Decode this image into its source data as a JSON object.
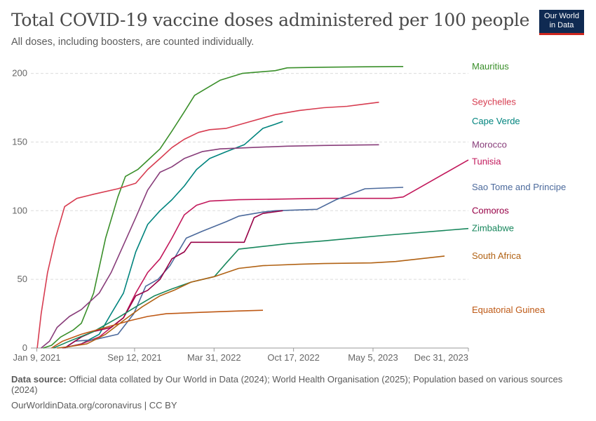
{
  "header": {
    "title": "Total COVID-19 vaccine doses administered per 100 people",
    "subtitle": "All doses, including boosters, are counted individually.",
    "logo_line1": "Our World",
    "logo_line2": "in Data"
  },
  "footer": {
    "source_label": "Data source:",
    "source_text": "Official data collated by Our World in Data (2024); World Health Organisation (2025); Population based on various sources (2024)",
    "url": "OurWorldinData.org/coronavirus | CC BY"
  },
  "chart_data": {
    "type": "line",
    "title": "Total COVID-19 vaccine doses administered per 100 people",
    "x_axis": {
      "type": "date",
      "range": [
        "2020-12-25",
        "2023-12-31"
      ],
      "ticks": [
        {
          "date": "2021-01-09",
          "label": "Jan 9, 2021"
        },
        {
          "date": "2021-09-12",
          "label": "Sep 12, 2021"
        },
        {
          "date": "2022-03-31",
          "label": "Mar 31, 2022"
        },
        {
          "date": "2022-10-17",
          "label": "Oct 17, 2022"
        },
        {
          "date": "2023-05-05",
          "label": "May 5, 2023"
        },
        {
          "date": "2023-12-31",
          "label": "Dec 31, 2023"
        }
      ]
    },
    "y_axis": {
      "range": [
        0,
        210
      ],
      "ticks": [
        0,
        50,
        100,
        150,
        200
      ]
    },
    "grid": "horizontal-dashed",
    "legend": "line-end-labels-right",
    "series": [
      {
        "name": "Mauritius",
        "color": "#3a8f2a",
        "points": [
          [
            "2021-01-25",
            0
          ],
          [
            "2021-02-15",
            2
          ],
          [
            "2021-03-10",
            8
          ],
          [
            "2021-04-10",
            13
          ],
          [
            "2021-05-01",
            18
          ],
          [
            "2021-06-01",
            40
          ],
          [
            "2021-07-01",
            80
          ],
          [
            "2021-08-01",
            110
          ],
          [
            "2021-08-20",
            125
          ],
          [
            "2021-09-20",
            130
          ],
          [
            "2021-10-20",
            138
          ],
          [
            "2021-11-15",
            145
          ],
          [
            "2021-12-15",
            158
          ],
          [
            "2022-01-15",
            172
          ],
          [
            "2022-02-10",
            184
          ],
          [
            "2022-04-15",
            195
          ],
          [
            "2022-06-10",
            200
          ],
          [
            "2022-09-01",
            202
          ],
          [
            "2022-10-01",
            204
          ],
          [
            "2023-01-01",
            204.5
          ],
          [
            "2023-07-01",
            205
          ],
          [
            "2023-07-20",
            205
          ]
        ]
      },
      {
        "name": "Seychelles",
        "color": "#d73c50",
        "points": [
          [
            "2021-01-10",
            0
          ],
          [
            "2021-01-20",
            25
          ],
          [
            "2021-02-05",
            55
          ],
          [
            "2021-02-25",
            80
          ],
          [
            "2021-03-20",
            103
          ],
          [
            "2021-04-20",
            109
          ],
          [
            "2021-06-01",
            112
          ],
          [
            "2021-08-01",
            116
          ],
          [
            "2021-09-15",
            120
          ],
          [
            "2021-10-15",
            130
          ],
          [
            "2021-11-15",
            138
          ],
          [
            "2021-12-15",
            146
          ],
          [
            "2022-01-15",
            152
          ],
          [
            "2022-02-20",
            157
          ],
          [
            "2022-03-20",
            159
          ],
          [
            "2022-05-01",
            160
          ],
          [
            "2022-07-01",
            165
          ],
          [
            "2022-09-01",
            170
          ],
          [
            "2022-11-01",
            173
          ],
          [
            "2023-01-01",
            175
          ],
          [
            "2023-03-01",
            176
          ],
          [
            "2023-05-20",
            179
          ]
        ]
      },
      {
        "name": "Cape Verde",
        "color": "#00847e",
        "points": [
          [
            "2021-03-15",
            0
          ],
          [
            "2021-05-01",
            3
          ],
          [
            "2021-06-15",
            10
          ],
          [
            "2021-07-15",
            25
          ],
          [
            "2021-08-15",
            40
          ],
          [
            "2021-09-15",
            70
          ],
          [
            "2021-10-15",
            90
          ],
          [
            "2021-11-15",
            100
          ],
          [
            "2021-12-15",
            108
          ],
          [
            "2022-01-15",
            118
          ],
          [
            "2022-02-15",
            130
          ],
          [
            "2022-03-20",
            138
          ],
          [
            "2022-05-01",
            143
          ],
          [
            "2022-06-15",
            148
          ],
          [
            "2022-08-01",
            160
          ],
          [
            "2022-09-01",
            163
          ],
          [
            "2022-09-20",
            165
          ]
        ]
      },
      {
        "name": "Morocco",
        "color": "#883d7a",
        "points": [
          [
            "2021-01-20",
            0
          ],
          [
            "2021-02-10",
            5
          ],
          [
            "2021-03-01",
            15
          ],
          [
            "2021-04-01",
            23
          ],
          [
            "2021-05-01",
            28
          ],
          [
            "2021-06-15",
            40
          ],
          [
            "2021-07-15",
            55
          ],
          [
            "2021-08-15",
            75
          ],
          [
            "2021-09-15",
            95
          ],
          [
            "2021-10-15",
            115
          ],
          [
            "2021-11-15",
            128
          ],
          [
            "2021-12-15",
            132
          ],
          [
            "2022-01-15",
            138
          ],
          [
            "2022-03-01",
            143
          ],
          [
            "2022-04-15",
            145
          ],
          [
            "2022-07-01",
            146
          ],
          [
            "2022-10-01",
            147
          ],
          [
            "2023-01-01",
            147.5
          ],
          [
            "2023-05-20",
            148
          ]
        ]
      },
      {
        "name": "Tunisia",
        "color": "#c2185b",
        "points": [
          [
            "2021-03-15",
            0
          ],
          [
            "2021-05-01",
            3
          ],
          [
            "2021-06-15",
            8
          ],
          [
            "2021-07-15",
            15
          ],
          [
            "2021-08-15",
            22
          ],
          [
            "2021-09-15",
            40
          ],
          [
            "2021-10-15",
            55
          ],
          [
            "2021-11-15",
            65
          ],
          [
            "2021-12-15",
            80
          ],
          [
            "2022-01-15",
            97
          ],
          [
            "2022-02-15",
            104
          ],
          [
            "2022-03-20",
            107
          ],
          [
            "2022-06-01",
            108
          ],
          [
            "2022-10-01",
            108.5
          ],
          [
            "2023-01-01",
            109
          ],
          [
            "2023-06-20",
            109
          ],
          [
            "2023-07-20",
            110
          ],
          [
            "2023-12-31",
            137
          ]
        ]
      },
      {
        "name": "Sao Tome and Principe",
        "color": "#4c6a9c",
        "points": [
          [
            "2021-03-20",
            0
          ],
          [
            "2021-04-15",
            5
          ],
          [
            "2021-06-01",
            6
          ],
          [
            "2021-08-01",
            10
          ],
          [
            "2021-09-10",
            25
          ],
          [
            "2021-10-10",
            45
          ],
          [
            "2021-11-10",
            50
          ],
          [
            "2021-12-10",
            60
          ],
          [
            "2022-01-20",
            80
          ],
          [
            "2022-03-01",
            85
          ],
          [
            "2022-05-01",
            92
          ],
          [
            "2022-06-01",
            96
          ],
          [
            "2022-08-01",
            99
          ],
          [
            "2022-09-01",
            100
          ],
          [
            "2022-12-15",
            101
          ],
          [
            "2023-02-01",
            108
          ],
          [
            "2023-04-15",
            116
          ],
          [
            "2023-07-20",
            117
          ]
        ]
      },
      {
        "name": "Comoros",
        "color": "#970046",
        "points": [
          [
            "2021-03-20",
            0
          ],
          [
            "2021-05-01",
            8
          ],
          [
            "2021-06-01",
            12
          ],
          [
            "2021-07-15",
            15
          ],
          [
            "2021-08-15",
            22
          ],
          [
            "2021-09-15",
            38
          ],
          [
            "2021-10-15",
            42
          ],
          [
            "2021-11-15",
            50
          ],
          [
            "2021-12-15",
            65
          ],
          [
            "2022-01-15",
            70
          ],
          [
            "2022-02-01",
            77
          ],
          [
            "2022-06-15",
            77
          ],
          [
            "2022-07-10",
            95
          ],
          [
            "2022-08-01",
            98
          ],
          [
            "2022-09-20",
            100
          ]
        ]
      },
      {
        "name": "Zimbabwe",
        "color": "#18875d",
        "points": [
          [
            "2021-02-20",
            0
          ],
          [
            "2021-04-01",
            5
          ],
          [
            "2021-06-01",
            12
          ],
          [
            "2021-08-01",
            22
          ],
          [
            "2021-09-15",
            30
          ],
          [
            "2021-11-01",
            38
          ],
          [
            "2021-12-15",
            43
          ],
          [
            "2022-02-01",
            48
          ],
          [
            "2022-04-01",
            52
          ],
          [
            "2022-05-01",
            62
          ],
          [
            "2022-06-01",
            72
          ],
          [
            "2022-08-01",
            74
          ],
          [
            "2022-10-01",
            76
          ],
          [
            "2023-01-01",
            78
          ],
          [
            "2023-06-01",
            82
          ],
          [
            "2023-12-31",
            87
          ]
        ]
      },
      {
        "name": "South Africa",
        "color": "#b16214",
        "points": [
          [
            "2021-03-01",
            0
          ],
          [
            "2021-04-01",
            1
          ],
          [
            "2021-05-15",
            3
          ],
          [
            "2021-07-01",
            10
          ],
          [
            "2021-08-15",
            20
          ],
          [
            "2021-10-01",
            30
          ],
          [
            "2021-11-15",
            38
          ],
          [
            "2021-12-20",
            42
          ],
          [
            "2022-02-01",
            48
          ],
          [
            "2022-04-01",
            52
          ],
          [
            "2022-06-01",
            58
          ],
          [
            "2022-08-01",
            60
          ],
          [
            "2022-11-01",
            61
          ],
          [
            "2023-01-01",
            61.5
          ],
          [
            "2023-05-01",
            62
          ],
          [
            "2023-07-01",
            63
          ],
          [
            "2023-11-01",
            67
          ]
        ]
      },
      {
        "name": "Equatorial Guinea",
        "color": "#be5915",
        "points": [
          [
            "2021-02-15",
            0
          ],
          [
            "2021-03-15",
            5
          ],
          [
            "2021-05-01",
            10
          ],
          [
            "2021-07-01",
            15
          ],
          [
            "2021-09-01",
            20
          ],
          [
            "2021-10-15",
            23
          ],
          [
            "2021-12-01",
            25
          ],
          [
            "2022-03-01",
            26
          ],
          [
            "2022-06-01",
            27
          ],
          [
            "2022-08-01",
            27.5
          ]
        ]
      }
    ]
  }
}
